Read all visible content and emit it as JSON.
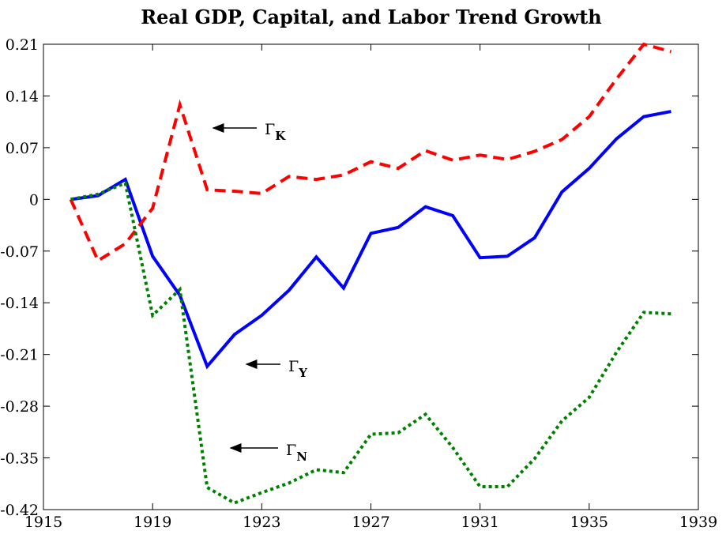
{
  "chart_data": {
    "type": "line",
    "title": "Real GDP, Capital, and Labor Trend Growth",
    "x": [
      1916,
      1917,
      1918,
      1919,
      1920,
      1921,
      1922,
      1923,
      1924,
      1925,
      1926,
      1927,
      1928,
      1929,
      1930,
      1931,
      1932,
      1933,
      1934,
      1935,
      1936,
      1937,
      1938
    ],
    "series": [
      {
        "color": "#0000ff",
        "dash": "solid",
        "values": [
          0,
          0.005,
          0.027,
          -0.077,
          -0.13,
          -0.226,
          -0.183,
          -0.157,
          -0.123,
          -0.078,
          -0.12,
          -0.046,
          -0.038,
          -0.01,
          -0.022,
          -0.079,
          -0.077,
          -0.052,
          0.01,
          0.042,
          0.082,
          0.112,
          0.119
        ]
      },
      {
        "color": "#ff0000",
        "dash": "dashed",
        "values": [
          0,
          -0.083,
          -0.06,
          -0.012,
          0.128,
          0.013,
          0.011,
          0.008,
          0.031,
          0.027,
          0.033,
          0.051,
          0.042,
          0.066,
          0.053,
          0.06,
          0.054,
          0.065,
          0.081,
          0.112,
          0.163,
          0.21,
          0.2
        ]
      },
      {
        "color": "#008000",
        "dash": "dotted",
        "values": [
          0,
          0.007,
          0.022,
          -0.157,
          -0.122,
          -0.39,
          -0.411,
          -0.397,
          -0.384,
          -0.366,
          -0.37,
          -0.318,
          -0.316,
          -0.291,
          -0.336,
          -0.389,
          -0.389,
          -0.351,
          -0.3,
          -0.268,
          -0.207,
          -0.153,
          -0.155
        ]
      }
    ],
    "annotations": [
      {
        "text": "Γ",
        "sub": "K"
      },
      {
        "text": "Γ",
        "sub": "Y"
      },
      {
        "text": "Γ",
        "sub": "N"
      }
    ],
    "xlim": [
      1915,
      1939
    ],
    "xticks": [
      1915,
      1919,
      1923,
      1927,
      1931,
      1935,
      1939
    ],
    "ylim": [
      -0.42,
      0.21
    ],
    "yticks": [
      0.21,
      0.14,
      0.07,
      0,
      -0.07,
      -0.14,
      -0.21,
      -0.28,
      -0.35,
      -0.42
    ]
  }
}
